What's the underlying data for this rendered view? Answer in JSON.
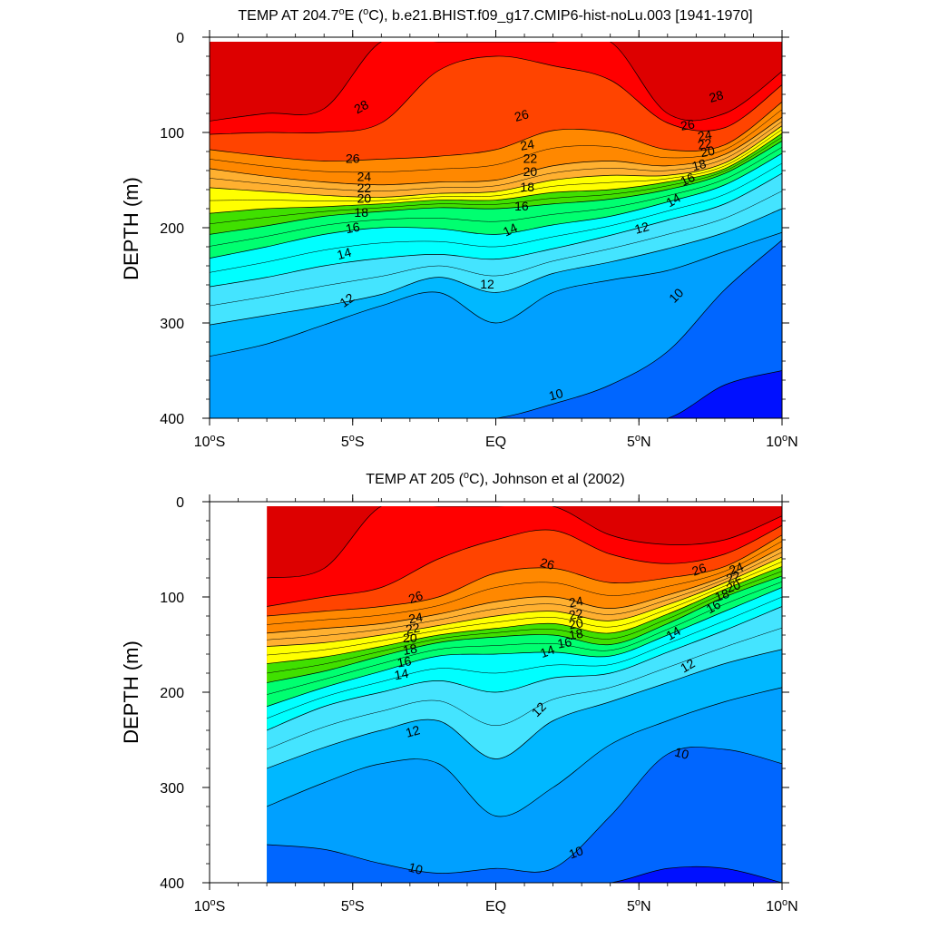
{
  "chart_data": [
    {
      "type": "contour",
      "title_main": "TEMP AT 204.7",
      "title_rest": "E (",
      "title_unit": "C), b.e21.BHIST.f09_g17.CMIP6-hist-noLu.003 [1941-1970]",
      "degree_mark": "o",
      "xlabel": "",
      "ylabel": "DEPTH (m)",
      "x_range": [
        -10,
        10
      ],
      "y_range": [
        0,
        400
      ],
      "y_inverted": true,
      "data_x_start": -10,
      "x_ticks": [
        {
          "value": -10,
          "label": "10",
          "deg": "o",
          "hemi": "S"
        },
        {
          "value": -5,
          "label": "5",
          "deg": "o",
          "hemi": "S"
        },
        {
          "value": 0,
          "label": "EQ",
          "deg": "",
          "hemi": ""
        },
        {
          "value": 5,
          "label": "5",
          "deg": "o",
          "hemi": "N"
        },
        {
          "value": 10,
          "label": "10",
          "deg": "o",
          "hemi": "N"
        }
      ],
      "y_ticks": [
        "0",
        "100",
        "200",
        "300",
        "400"
      ],
      "contour_interval": 1,
      "isotherm_depths_m": {
        "lat": [
          -10,
          -8,
          -6,
          -4,
          -2,
          0,
          2,
          4,
          6,
          8,
          10
        ],
        "28": [
          88,
          80,
          75,
          0,
          0,
          0,
          0,
          0,
          80,
          80,
          36
        ],
        "27": [
          102,
          100,
          100,
          90,
          35,
          20,
          30,
          45,
          90,
          95,
          50
        ],
        "26": [
          118,
          125,
          130,
          128,
          125,
          118,
          98,
          100,
          118,
          113,
          68
        ],
        "24": [
          138,
          146,
          152,
          155,
          152,
          150,
          135,
          130,
          135,
          123,
          84
        ],
        "22": [
          158,
          162,
          166,
          168,
          164,
          162,
          150,
          145,
          145,
          132,
          93
        ],
        "20": [
          185,
          180,
          178,
          175,
          171,
          171,
          163,
          160,
          152,
          138,
          101
        ],
        "18": [
          207,
          198,
          188,
          183,
          179,
          180,
          175,
          170,
          160,
          143,
          109
        ],
        "16": [
          232,
          220,
          207,
          200,
          201,
          207,
          197,
          188,
          173,
          155,
          122
        ],
        "14": [
          262,
          252,
          240,
          232,
          228,
          233,
          222,
          208,
          192,
          175,
          143
        ],
        "12": [
          302,
          292,
          282,
          270,
          252,
          268,
          248,
          236,
          222,
          205,
          180
        ],
        "11": [
          335,
          322,
          302,
          282,
          268,
          300,
          268,
          255,
          245,
          225,
          205
        ],
        "10": [
          400,
          400,
          400,
          400,
          400,
          400,
          385,
          365,
          330,
          265,
          213
        ],
        "9": [
          400,
          400,
          400,
          400,
          400,
          400,
          400,
          400,
          400,
          365,
          350
        ]
      },
      "labels": [
        {
          "text": "28",
          "lat": -4.7,
          "depth": 73,
          "angle": -28
        },
        {
          "text": "26",
          "lat": -5.0,
          "depth": 127,
          "angle": 0
        },
        {
          "text": "24",
          "lat": -4.6,
          "depth": 146,
          "angle": 0
        },
        {
          "text": "22",
          "lat": -4.6,
          "depth": 158,
          "angle": 0
        },
        {
          "text": "20",
          "lat": -4.6,
          "depth": 169,
          "angle": 0
        },
        {
          "text": "18",
          "lat": -4.7,
          "depth": 184,
          "angle": 0
        },
        {
          "text": "16",
          "lat": -5.0,
          "depth": 200,
          "angle": -10
        },
        {
          "text": "14",
          "lat": -5.3,
          "depth": 227,
          "angle": -15
        },
        {
          "text": "12",
          "lat": -5.2,
          "depth": 276,
          "angle": -35
        },
        {
          "text": "26",
          "lat": 0.9,
          "depth": 82,
          "angle": -15
        },
        {
          "text": "24",
          "lat": 1.1,
          "depth": 113,
          "angle": -10
        },
        {
          "text": "22",
          "lat": 1.2,
          "depth": 127,
          "angle": 0
        },
        {
          "text": "20",
          "lat": 1.2,
          "depth": 141,
          "angle": 0
        },
        {
          "text": "18",
          "lat": 1.1,
          "depth": 157,
          "angle": 0
        },
        {
          "text": "16",
          "lat": 0.9,
          "depth": 177,
          "angle": 0
        },
        {
          "text": "14",
          "lat": 0.5,
          "depth": 202,
          "angle": -25
        },
        {
          "text": "12",
          "lat": -0.3,
          "depth": 259,
          "angle": 0
        },
        {
          "text": "28",
          "lat": 7.7,
          "depth": 62,
          "angle": -15
        },
        {
          "text": "26",
          "lat": 6.7,
          "depth": 92,
          "angle": -10
        },
        {
          "text": "24",
          "lat": 7.3,
          "depth": 103,
          "angle": -10
        },
        {
          "text": "22",
          "lat": 7.3,
          "depth": 112,
          "angle": -10
        },
        {
          "text": "20",
          "lat": 7.4,
          "depth": 120,
          "angle": -10
        },
        {
          "text": "18",
          "lat": 7.1,
          "depth": 134,
          "angle": -15
        },
        {
          "text": "16",
          "lat": 6.7,
          "depth": 149,
          "angle": -25
        },
        {
          "text": "14",
          "lat": 6.2,
          "depth": 171,
          "angle": -30
        },
        {
          "text": "12",
          "lat": 5.1,
          "depth": 200,
          "angle": -15
        },
        {
          "text": "10",
          "lat": 6.3,
          "depth": 271,
          "angle": -45
        },
        {
          "text": "10",
          "lat": 2.1,
          "depth": 375,
          "angle": -15
        }
      ]
    },
    {
      "type": "contour",
      "title_main": "TEMP AT 205 (",
      "title_rest": "",
      "title_unit": "C), Johnson et al (2002)",
      "degree_mark": "o",
      "xlabel": "",
      "ylabel": "DEPTH (m)",
      "x_range": [
        -10,
        10
      ],
      "y_range": [
        0,
        400
      ],
      "y_inverted": true,
      "data_x_start": -8,
      "x_ticks": [
        {
          "value": -10,
          "label": "10",
          "deg": "o",
          "hemi": "S"
        },
        {
          "value": -5,
          "label": "5",
          "deg": "o",
          "hemi": "S"
        },
        {
          "value": 0,
          "label": "EQ",
          "deg": "",
          "hemi": ""
        },
        {
          "value": 5,
          "label": "5",
          "deg": "o",
          "hemi": "N"
        },
        {
          "value": 10,
          "label": "10",
          "deg": "o",
          "hemi": "N"
        }
      ],
      "y_ticks": [
        "0",
        "100",
        "200",
        "300",
        "400"
      ],
      "contour_interval": 1,
      "isotherm_depths_m": {
        "lat": [
          -8,
          -6,
          -4,
          -2,
          0,
          2,
          4,
          6,
          8,
          10
        ],
        "28": [
          80,
          70,
          0,
          0,
          0,
          0,
          35,
          45,
          40,
          15
        ],
        "27": [
          110,
          100,
          90,
          60,
          40,
          30,
          55,
          65,
          55,
          25
        ],
        "26": [
          120,
          115,
          110,
          100,
          75,
          70,
          85,
          80,
          68,
          35
        ],
        "24": [
          138,
          133,
          128,
          118,
          105,
          100,
          112,
          98,
          78,
          48
        ],
        "22": [
          152,
          148,
          140,
          130,
          120,
          115,
          125,
          108,
          85,
          58
        ],
        "20": [
          170,
          163,
          152,
          140,
          133,
          128,
          138,
          118,
          92,
          68
        ],
        "18": [
          190,
          178,
          162,
          148,
          142,
          140,
          150,
          128,
          100,
          78
        ],
        "16": [
          215,
          195,
          178,
          162,
          160,
          158,
          162,
          140,
          115,
          90
        ],
        "14": [
          240,
          215,
          200,
          188,
          200,
          185,
          180,
          158,
          135,
          110
        ],
        "12": [
          280,
          258,
          240,
          230,
          270,
          230,
          210,
          190,
          170,
          155
        ],
        "11": [
          320,
          295,
          275,
          275,
          330,
          300,
          255,
          230,
          210,
          195
        ],
        "10": [
          360,
          365,
          380,
          390,
          385,
          385,
          330,
          265,
          260,
          275
        ],
        "9": [
          400,
          400,
          400,
          400,
          400,
          400,
          400,
          385,
          385,
          400
        ]
      },
      "labels": [
        {
          "text": "26",
          "lat": -2.8,
          "depth": 100,
          "angle": -20
        },
        {
          "text": "24",
          "lat": -2.8,
          "depth": 122,
          "angle": -10
        },
        {
          "text": "22",
          "lat": -2.9,
          "depth": 133,
          "angle": -10
        },
        {
          "text": "20",
          "lat": -3.0,
          "depth": 143,
          "angle": 0
        },
        {
          "text": "18",
          "lat": -3.0,
          "depth": 155,
          "angle": -10
        },
        {
          "text": "16",
          "lat": -3.2,
          "depth": 168,
          "angle": -10
        },
        {
          "text": "14",
          "lat": -3.3,
          "depth": 181,
          "angle": -10
        },
        {
          "text": "12",
          "lat": -2.9,
          "depth": 241,
          "angle": -15
        },
        {
          "text": "10",
          "lat": -2.8,
          "depth": 385,
          "angle": 15
        },
        {
          "text": "26",
          "lat": 1.8,
          "depth": 65,
          "angle": 15
        },
        {
          "text": "24",
          "lat": 2.8,
          "depth": 105,
          "angle": -10
        },
        {
          "text": "22",
          "lat": 2.8,
          "depth": 118,
          "angle": -10
        },
        {
          "text": "20",
          "lat": 2.8,
          "depth": 128,
          "angle": -10
        },
        {
          "text": "18",
          "lat": 2.8,
          "depth": 139,
          "angle": -10
        },
        {
          "text": "16",
          "lat": 2.4,
          "depth": 148,
          "angle": -10
        },
        {
          "text": "14",
          "lat": 1.8,
          "depth": 157,
          "angle": -20
        },
        {
          "text": "12",
          "lat": 1.5,
          "depth": 218,
          "angle": -45
        },
        {
          "text": "10",
          "lat": 2.8,
          "depth": 368,
          "angle": -20
        },
        {
          "text": "26",
          "lat": 7.1,
          "depth": 71,
          "angle": -20
        },
        {
          "text": "24",
          "lat": 8.4,
          "depth": 70,
          "angle": -20
        },
        {
          "text": "22",
          "lat": 8.3,
          "depth": 79,
          "angle": -20
        },
        {
          "text": "20",
          "lat": 8.3,
          "depth": 89,
          "angle": -20
        },
        {
          "text": "18",
          "lat": 7.9,
          "depth": 98,
          "angle": -20
        },
        {
          "text": "16",
          "lat": 7.6,
          "depth": 110,
          "angle": -30
        },
        {
          "text": "14",
          "lat": 6.2,
          "depth": 138,
          "angle": -30
        },
        {
          "text": "12",
          "lat": 6.7,
          "depth": 172,
          "angle": -30
        },
        {
          "text": "10",
          "lat": 6.5,
          "depth": 264,
          "angle": 15
        }
      ]
    }
  ],
  "colors": {
    "levels": [
      {
        "t": 28,
        "c": "#ff0000"
      },
      {
        "t": 27,
        "c": "#ff4400"
      },
      {
        "t": 26,
        "c": "#ff8800"
      },
      {
        "t": 25,
        "c": "#ffa030"
      },
      {
        "t": 24,
        "c": "#ffb030"
      },
      {
        "t": 23,
        "c": "#ffd030"
      },
      {
        "t": 22,
        "c": "#ffff00"
      },
      {
        "t": 21,
        "c": "#c8f000"
      },
      {
        "t": 20,
        "c": "#40e000"
      },
      {
        "t": 19,
        "c": "#00e820"
      },
      {
        "t": 18,
        "c": "#00ff70"
      },
      {
        "t": 17,
        "c": "#00ffc0"
      },
      {
        "t": 16,
        "c": "#00ffff"
      },
      {
        "t": 15,
        "c": "#22eeff"
      },
      {
        "t": 14,
        "c": "#44e4ff"
      },
      {
        "t": 13,
        "c": "#00ccff"
      },
      {
        "t": 12,
        "c": "#00b8ff"
      },
      {
        "t": 11,
        "c": "#00a0ff"
      },
      {
        "t": 10,
        "c": "#0066ff"
      },
      {
        "t": 9,
        "c": "#0010ff"
      }
    ],
    "warmest": "#dd0000",
    "base": "#6fd0ff"
  }
}
